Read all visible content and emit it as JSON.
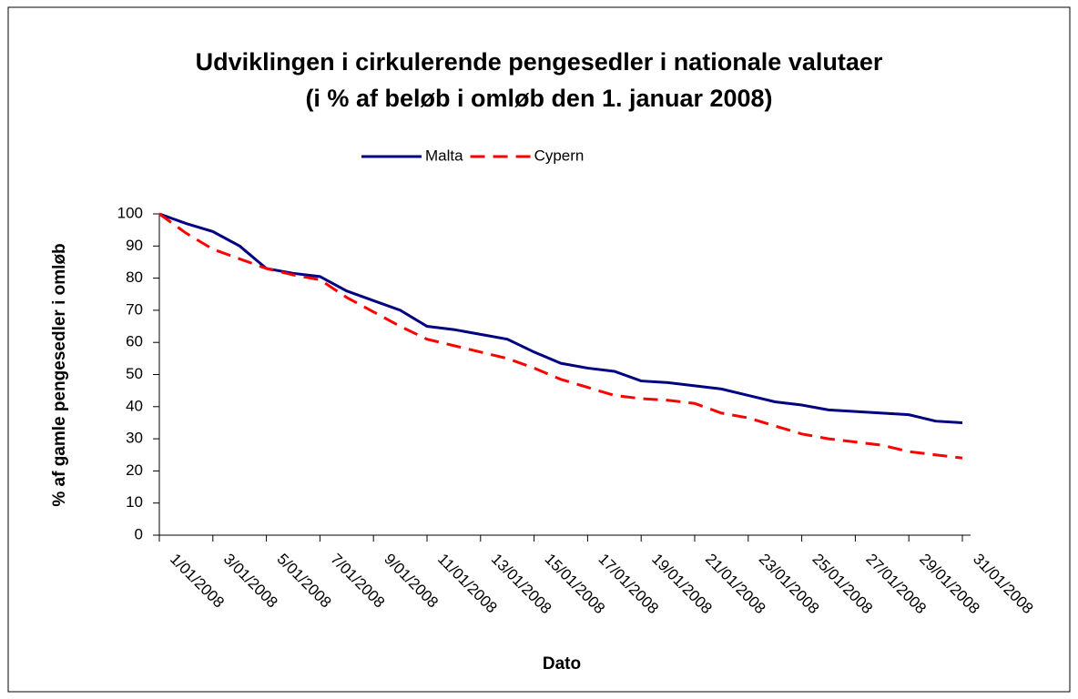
{
  "chart_data": {
    "type": "line",
    "title": "Udviklingen i cirkulerende pengesedler i nationale valutaer",
    "subtitle": "(i % af beløb i omløb den 1. januar 2008)",
    "x_label": "Dato",
    "y_label": "% af gamle pengesedler i omløb",
    "categories": [
      "1/01/2008",
      null,
      "3/01/2008",
      null,
      "5/01/2008",
      null,
      "7/01/2008",
      null,
      "9/01/2008",
      null,
      "11/01/2008",
      null,
      "13/01/2008",
      null,
      "15/01/2008",
      null,
      "17/01/2008",
      null,
      "19/01/2008",
      null,
      "21/01/2008",
      null,
      "23/01/2008",
      null,
      "25/01/2008",
      null,
      "27/01/2008",
      null,
      "29/01/2008",
      null,
      "31/01/2008"
    ],
    "series": [
      {
        "name": "Malta",
        "color": "#000080",
        "dashed": false,
        "values": [
          100,
          97,
          94.5,
          90,
          83,
          81.5,
          80.5,
          76,
          73,
          70,
          65,
          64,
          62.5,
          61,
          57,
          53.5,
          52,
          51,
          48,
          47.5,
          46.5,
          45.5,
          43.5,
          41.5,
          40.5,
          39,
          38.5,
          38,
          37.5,
          35.5,
          35
        ]
      },
      {
        "name": "Cypern",
        "color": "#ff0000",
        "dashed": true,
        "values": [
          100,
          94,
          89,
          86,
          83,
          81,
          79.5,
          74,
          69.5,
          65,
          61,
          59,
          57,
          55,
          52,
          48.5,
          46,
          43.5,
          42.5,
          42,
          41,
          38,
          36.5,
          34,
          31.5,
          30,
          29,
          28,
          26,
          25,
          24
        ]
      }
    ],
    "ylim": [
      0,
      100
    ],
    "yticks": [
      0,
      10,
      20,
      30,
      40,
      50,
      60,
      70,
      80,
      90,
      100
    ],
    "grid": false,
    "legend": "top"
  }
}
